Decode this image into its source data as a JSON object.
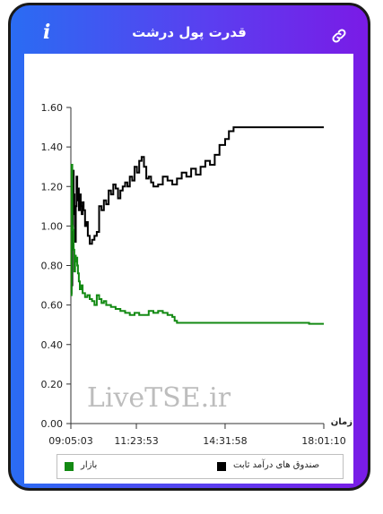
{
  "header": {
    "title": "قدرت پول درشت",
    "info_icon": "info-icon",
    "link_icon": "link-icon"
  },
  "watermark": "LiveTSE.ir",
  "colors": {
    "card_gradient_start": "#2a6cf3",
    "card_gradient_end": "#7a1be6",
    "fixed_income": "#000000",
    "market": "#138a13"
  },
  "chart_data": {
    "type": "line",
    "xlabel": "زمان",
    "ylabel": "",
    "ylim": [
      0,
      1.6
    ],
    "xlim": [
      "09:05:03",
      "18:01:10"
    ],
    "y_ticks": [
      "0.00",
      "0.20",
      "0.40",
      "0.60",
      "0.80",
      "1.00",
      "1.20",
      "1.40",
      "1.60"
    ],
    "x_ticks": [
      "09:05:03",
      "11:23:53",
      "14:31:58",
      "18:01:10"
    ],
    "grid": false,
    "legend_position": "bottom",
    "series": [
      {
        "name": "صندوق های درآمد ثابت",
        "color": "#000000",
        "points": [
          [
            "09:05:03",
            0.66
          ],
          [
            "09:06:30",
            0.7
          ],
          [
            "09:08:00",
            1.0
          ],
          [
            "09:09:30",
            1.28
          ],
          [
            "09:11:00",
            1.16
          ],
          [
            "09:12:30",
            1.06
          ],
          [
            "09:14:00",
            0.92
          ],
          [
            "09:15:30",
            1.1
          ],
          [
            "09:17:00",
            1.25
          ],
          [
            "09:18:30",
            1.13
          ],
          [
            "09:20:00",
            1.19
          ],
          [
            "09:22:00",
            1.08
          ],
          [
            "09:24:00",
            1.16
          ],
          [
            "09:26:00",
            1.1
          ],
          [
            "09:28:00",
            1.06
          ],
          [
            "09:30:00",
            1.12
          ],
          [
            "09:32:00",
            1.08
          ],
          [
            "09:35:00",
            1.0
          ],
          [
            "09:38:00",
            1.02
          ],
          [
            "09:41:00",
            0.95
          ],
          [
            "09:45:00",
            0.91
          ],
          [
            "09:50:00",
            0.93
          ],
          [
            "09:55:00",
            0.95
          ],
          [
            "10:00:00",
            0.97
          ],
          [
            "10:05:00",
            1.1
          ],
          [
            "10:10:00",
            1.08
          ],
          [
            "10:15:00",
            1.13
          ],
          [
            "10:20:00",
            1.11
          ],
          [
            "10:25:00",
            1.18
          ],
          [
            "10:30:00",
            1.16
          ],
          [
            "10:35:00",
            1.21
          ],
          [
            "10:40:00",
            1.19
          ],
          [
            "10:45:00",
            1.14
          ],
          [
            "10:50:00",
            1.18
          ],
          [
            "10:55:00",
            1.2
          ],
          [
            "11:00:00",
            1.22
          ],
          [
            "11:05:00",
            1.2
          ],
          [
            "11:10:00",
            1.25
          ],
          [
            "11:15:00",
            1.23
          ],
          [
            "11:20:00",
            1.3
          ],
          [
            "11:25:00",
            1.27
          ],
          [
            "11:30:00",
            1.33
          ],
          [
            "11:35:00",
            1.35
          ],
          [
            "11:40:00",
            1.3
          ],
          [
            "11:45:00",
            1.24
          ],
          [
            "11:50:00",
            1.25
          ],
          [
            "11:55:00",
            1.22
          ],
          [
            "12:00:00",
            1.2
          ],
          [
            "12:10:00",
            1.21
          ],
          [
            "12:20:00",
            1.25
          ],
          [
            "12:30:00",
            1.23
          ],
          [
            "12:40:00",
            1.21
          ],
          [
            "12:50:00",
            1.24
          ],
          [
            "13:00:00",
            1.27
          ],
          [
            "13:10:00",
            1.25
          ],
          [
            "13:20:00",
            1.29
          ],
          [
            "13:30:00",
            1.26
          ],
          [
            "13:40:00",
            1.3
          ],
          [
            "13:50:00",
            1.33
          ],
          [
            "14:00:00",
            1.31
          ],
          [
            "14:10:00",
            1.36
          ],
          [
            "14:20:00",
            1.41
          ],
          [
            "14:31:58",
            1.44
          ],
          [
            "14:40:00",
            1.48
          ],
          [
            "14:50:00",
            1.5
          ],
          [
            "15:30:00",
            1.5
          ],
          [
            "16:30:00",
            1.5
          ],
          [
            "17:30:00",
            1.5
          ],
          [
            "18:01:10",
            1.5
          ]
        ]
      },
      {
        "name": "بازار",
        "color": "#138a13",
        "points": [
          [
            "09:05:03",
            0.65
          ],
          [
            "09:06:30",
            1.31
          ],
          [
            "09:08:00",
            1.0
          ],
          [
            "09:09:30",
            0.98
          ],
          [
            "09:11:00",
            0.88
          ],
          [
            "09:12:30",
            0.77
          ],
          [
            "09:14:00",
            0.85
          ],
          [
            "09:15:30",
            0.82
          ],
          [
            "09:17:00",
            0.84
          ],
          [
            "09:18:30",
            0.8
          ],
          [
            "09:20:00",
            0.76
          ],
          [
            "09:22:00",
            0.72
          ],
          [
            "09:24:00",
            0.68
          ],
          [
            "09:27:00",
            0.7
          ],
          [
            "09:30:00",
            0.66
          ],
          [
            "09:35:00",
            0.64
          ],
          [
            "09:40:00",
            0.65
          ],
          [
            "09:45:00",
            0.63
          ],
          [
            "09:50:00",
            0.62
          ],
          [
            "09:55:00",
            0.6
          ],
          [
            "10:00:00",
            0.65
          ],
          [
            "10:05:00",
            0.63
          ],
          [
            "10:10:00",
            0.61
          ],
          [
            "10:15:00",
            0.62
          ],
          [
            "10:20:00",
            0.6
          ],
          [
            "10:30:00",
            0.59
          ],
          [
            "10:40:00",
            0.58
          ],
          [
            "10:50:00",
            0.57
          ],
          [
            "11:00:00",
            0.56
          ],
          [
            "11:10:00",
            0.55
          ],
          [
            "11:20:00",
            0.56
          ],
          [
            "11:30:00",
            0.55
          ],
          [
            "11:40:00",
            0.55
          ],
          [
            "11:50:00",
            0.57
          ],
          [
            "12:00:00",
            0.56
          ],
          [
            "12:10:00",
            0.57
          ],
          [
            "12:20:00",
            0.56
          ],
          [
            "12:30:00",
            0.55
          ],
          [
            "12:40:00",
            0.54
          ],
          [
            "12:45:00",
            0.52
          ],
          [
            "12:50:00",
            0.51
          ],
          [
            "13:30:00",
            0.51
          ],
          [
            "14:31:58",
            0.51
          ],
          [
            "15:30:00",
            0.51
          ],
          [
            "16:30:00",
            0.51
          ],
          [
            "17:30:00",
            0.505
          ],
          [
            "18:01:10",
            0.505
          ]
        ]
      }
    ]
  }
}
